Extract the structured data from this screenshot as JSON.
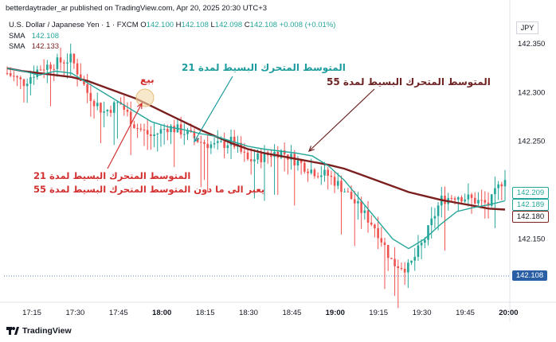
{
  "header": {
    "publisher_line": "betterdaytrader_ar published on TradingView.com, Apr 20, 2025 20:30 UTC+3"
  },
  "symbol": {
    "name": "U.S. Dollar / Japanese Yen · 1 · FXCM",
    "open_label": "O",
    "open": "142.100",
    "high_label": "H",
    "high": "142.108",
    "low_label": "L",
    "low": "142.098",
    "close_label": "C",
    "close": "142.108",
    "change": "+0.008 (+0.01%)"
  },
  "indicators": [
    {
      "label": "SMA",
      "value": "142.108",
      "color": "#26a69a"
    },
    {
      "label": "SMA",
      "value": "142.133",
      "color": "#7b1f1f"
    }
  ],
  "currency": "JPY",
  "price_axis": {
    "ticks": [
      "142.350",
      "142.300",
      "142.250",
      "142.150"
    ],
    "tags": [
      {
        "value": "142.209",
        "bg": "#ffffff",
        "fg": "#26a69a",
        "border": "#26a69a"
      },
      {
        "value": "142.189",
        "bg": "#ffffff",
        "fg": "#26a69a",
        "border": "#26a69a"
      },
      {
        "value": "142.180",
        "bg": "#ffffff",
        "fg": "#131722",
        "border": "#7b1f1f"
      },
      {
        "value": "142.108",
        "bg": "#2a5fa5",
        "fg": "#ffffff",
        "border": "#2a5fa5"
      }
    ]
  },
  "time_axis": {
    "ticks": [
      "17:15",
      "17:30",
      "17:45",
      "18:00",
      "18:15",
      "18:30",
      "18:45",
      "19:00",
      "19:15",
      "19:30",
      "19:45",
      "20:00"
    ],
    "bold_ticks": [
      "18:00",
      "19:00",
      "20:00"
    ]
  },
  "annotations": {
    "sell": "بيع",
    "sma21_label": "المتوسط المتحرك البسيط لمدة 21",
    "sma55_label": "المتوسط المتحرك البسيط لمدة 55",
    "cross_line1": "المتوسط المتحرك البسيط لمدة 21",
    "cross_line2": "يعبر الى ما دون المتوسط المتحرك البسيط لمدة 55"
  },
  "colors": {
    "up": "#26a69a",
    "down": "#ef5350",
    "sma21": "#26a69a",
    "sma55": "#7b1f1f",
    "arrow_sma21": "#1e9c9e",
    "arrow_sma55": "#6e2323",
    "arrow_cross": "#d32f2f"
  },
  "chart_data": {
    "type": "candlestick",
    "title": "U.S. Dollar / Japanese Yen · 1 · FXCM",
    "xlabel": "",
    "ylabel": "",
    "ylim": [
      142.085,
      142.395
    ],
    "x": [
      "17:05",
      "17:15",
      "17:25",
      "17:35",
      "17:45",
      "17:50",
      "17:55",
      "18:00",
      "18:05",
      "18:10",
      "18:15",
      "18:20",
      "18:25",
      "18:30",
      "18:35",
      "18:40",
      "18:45",
      "18:50",
      "18:55",
      "19:00",
      "19:05",
      "19:10",
      "19:15",
      "19:20",
      "19:25",
      "19:30",
      "19:35",
      "19:40",
      "19:45",
      "19:50",
      "19:55",
      "20:00"
    ],
    "candles_close": [
      142.32,
      142.31,
      142.325,
      142.33,
      142.335,
      142.3,
      142.28,
      142.29,
      142.265,
      142.255,
      142.265,
      142.26,
      142.25,
      142.245,
      142.25,
      142.23,
      142.235,
      142.24,
      142.23,
      142.22,
      142.215,
      142.2,
      142.18,
      142.16,
      142.125,
      142.12,
      142.15,
      142.19,
      142.195,
      142.19,
      142.185,
      142.215
    ],
    "series": [
      {
        "name": "SMA",
        "values": [
          142.325,
          142.322,
          142.318,
          142.322,
          142.32,
          142.31,
          142.3,
          142.29,
          142.28,
          142.27,
          142.265,
          142.262,
          142.258,
          142.255,
          142.25,
          142.245,
          142.242,
          142.24,
          142.238,
          142.235,
          142.225,
          142.21,
          142.19,
          142.17,
          142.15,
          142.14,
          142.15,
          142.165,
          142.178,
          142.182,
          142.185,
          142.189
        ]
      },
      {
        "name": "SMA",
        "values": [
          142.325,
          142.322,
          142.32,
          142.318,
          142.316,
          142.312,
          142.306,
          142.3,
          142.294,
          142.286,
          142.278,
          142.27,
          142.262,
          142.255,
          142.248,
          142.242,
          142.238,
          142.235,
          142.232,
          142.229,
          142.226,
          142.222,
          142.216,
          142.21,
          142.204,
          142.198,
          142.194,
          142.19,
          142.187,
          142.184,
          142.181,
          142.18
        ]
      }
    ],
    "grid": false,
    "legend": "top-left"
  }
}
